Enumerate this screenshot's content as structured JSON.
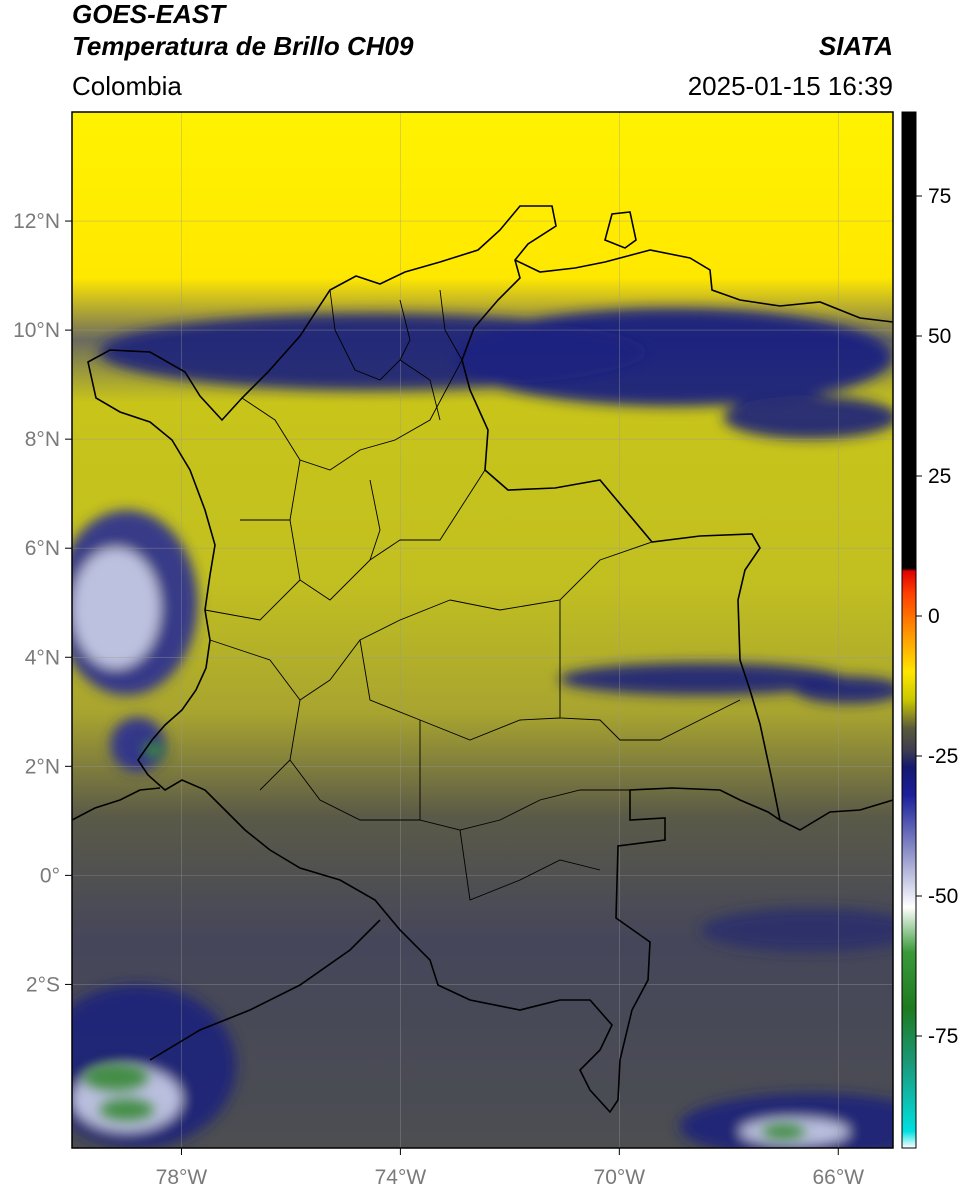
{
  "header": {
    "line1": "GOES-EAST",
    "line2": "Temperatura de Brillo CH09",
    "brand": "SIATA",
    "region": "Colombia",
    "timestamp": "2025-01-15 16:39"
  },
  "map": {
    "lon_range": [
      -80,
      -65
    ],
    "lat_range": [
      -5,
      14
    ],
    "lon_ticks": [
      {
        "value": -78,
        "label": "78°W"
      },
      {
        "value": -74,
        "label": "74°W"
      },
      {
        "value": -70,
        "label": "70°W"
      },
      {
        "value": -66,
        "label": "66°W"
      }
    ],
    "lat_ticks": [
      {
        "value": 12,
        "label": "12°N"
      },
      {
        "value": 10,
        "label": "10°N"
      },
      {
        "value": 8,
        "label": "8°N"
      },
      {
        "value": 6,
        "label": "6°N"
      },
      {
        "value": 4,
        "label": "4°N"
      },
      {
        "value": 2,
        "label": "2°N"
      },
      {
        "value": 0,
        "label": "0°"
      },
      {
        "value": -2,
        "label": "2°S"
      }
    ],
    "cloud_bands": [
      {
        "lon": -74.5,
        "lat": 9.6,
        "rx_deg": 5.0,
        "ry_deg": 0.7,
        "color": "#1e247a"
      },
      {
        "lon": -69.0,
        "lat": 9.5,
        "rx_deg": 4.0,
        "ry_deg": 0.9,
        "color": "#1a1f80"
      },
      {
        "lon": -66.5,
        "lat": 8.4,
        "rx_deg": 1.6,
        "ry_deg": 0.4,
        "color": "#1e247a"
      },
      {
        "lon": -79.0,
        "lat": 5.0,
        "rx_deg": 1.3,
        "ry_deg": 1.7,
        "color": "#2a3190"
      },
      {
        "lon": -79.2,
        "lat": 4.9,
        "rx_deg": 0.8,
        "ry_deg": 1.1,
        "color": "#c9cde8"
      },
      {
        "lon": -78.8,
        "lat": 2.4,
        "rx_deg": 0.5,
        "ry_deg": 0.5,
        "color": "#2a3190"
      },
      {
        "lon": -68.5,
        "lat": 3.6,
        "rx_deg": 2.6,
        "ry_deg": 0.3,
        "color": "#1e247a"
      },
      {
        "lon": -65.8,
        "lat": 3.4,
        "rx_deg": 1.0,
        "ry_deg": 0.25,
        "color": "#1e247a"
      },
      {
        "lon": -78.8,
        "lat": -3.5,
        "rx_deg": 1.8,
        "ry_deg": 1.5,
        "color": "#1e247a"
      },
      {
        "lon": -79.0,
        "lat": -4.1,
        "rx_deg": 1.0,
        "ry_deg": 0.6,
        "color": "#c9cde8"
      },
      {
        "lon": -66.5,
        "lat": -4.6,
        "rx_deg": 2.4,
        "ry_deg": 0.6,
        "color": "#1e247a"
      },
      {
        "lon": -66.8,
        "lat": -4.7,
        "rx_deg": 1.0,
        "ry_deg": 0.25,
        "color": "#c9cde8"
      },
      {
        "lon": -66.5,
        "lat": -1.0,
        "rx_deg": 2.0,
        "ry_deg": 0.4,
        "color": "#2a2f6a"
      }
    ],
    "green_spots": [
      {
        "lon": -79.2,
        "lat": -3.7,
        "rx_deg": 0.6,
        "ry_deg": 0.25
      },
      {
        "lon": -79.0,
        "lat": -4.3,
        "rx_deg": 0.5,
        "ry_deg": 0.2
      },
      {
        "lon": -78.5,
        "lat": 2.3,
        "rx_deg": 0.2,
        "ry_deg": 0.15
      },
      {
        "lon": -67.0,
        "lat": -4.7,
        "rx_deg": 0.4,
        "ry_deg": 0.15
      }
    ]
  },
  "colorbar": {
    "min": -95,
    "max": 90,
    "ticks": [
      75,
      50,
      25,
      0,
      -25,
      -50,
      -75
    ],
    "stops": [
      {
        "value": -95,
        "color": "#ffffff"
      },
      {
        "value": -92,
        "color": "#00e0e0"
      },
      {
        "value": -80,
        "color": "#1a9a7a"
      },
      {
        "value": -70,
        "color": "#1e7a1e"
      },
      {
        "value": -60,
        "color": "#3a9a3a"
      },
      {
        "value": -52,
        "color": "#ffffff"
      },
      {
        "value": -42,
        "color": "#8c90c8"
      },
      {
        "value": -32,
        "color": "#1a1f9a"
      },
      {
        "value": -27,
        "color": "#141870"
      },
      {
        "value": -24,
        "color": "#3c3c50"
      },
      {
        "value": -20,
        "color": "#5a5a3c"
      },
      {
        "value": -15,
        "color": "#c8c800"
      },
      {
        "value": -10,
        "color": "#ffe600"
      },
      {
        "value": -4,
        "color": "#ffa000"
      },
      {
        "value": 4,
        "color": "#ff4000"
      },
      {
        "value": 8,
        "color": "#e00000"
      },
      {
        "value": 8.5,
        "color": "#000000"
      },
      {
        "value": 90,
        "color": "#000000"
      }
    ]
  }
}
